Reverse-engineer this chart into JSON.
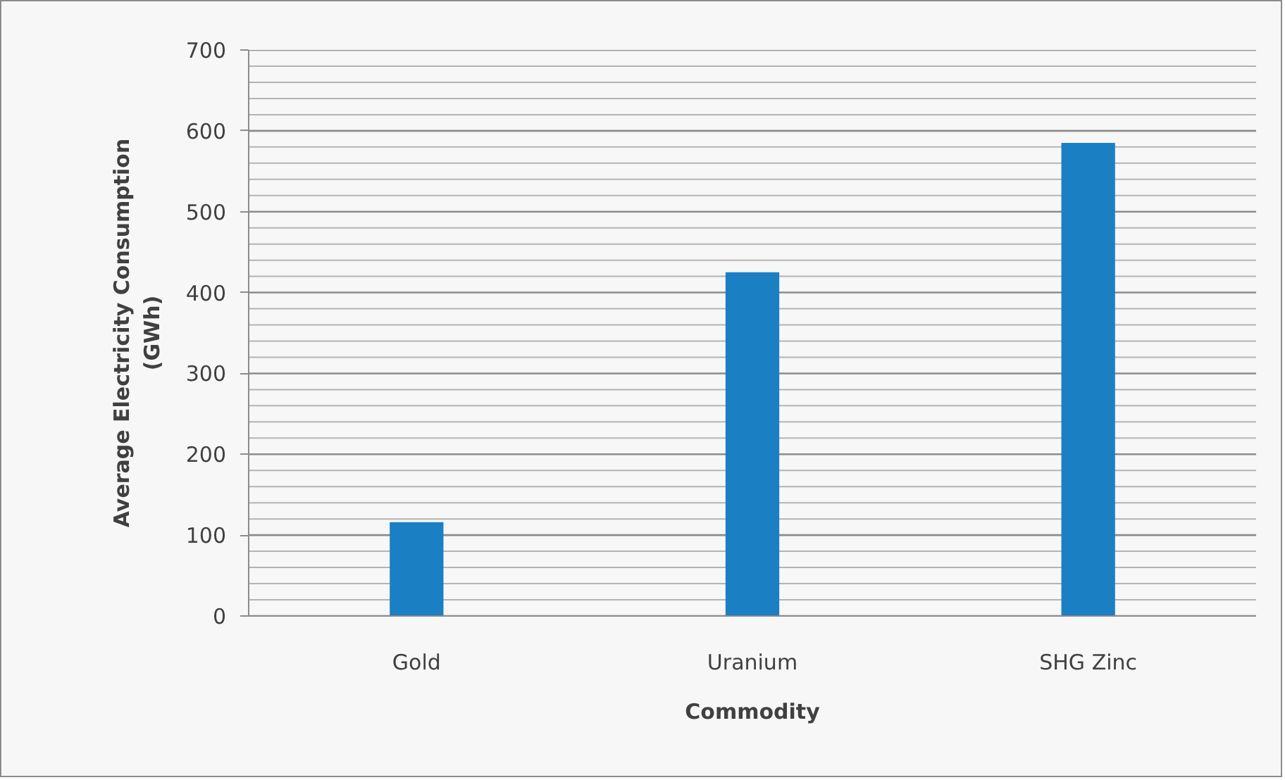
{
  "chart_data": {
    "type": "bar",
    "xlabel": "Commodity",
    "ylabel": "Average Electricity Consumption (GWh)",
    "categories": [
      "Gold",
      "Uranium",
      "SHG Zinc"
    ],
    "values": [
      116,
      425,
      585
    ],
    "color": "#1b7fc4",
    "ylim": [
      0,
      700
    ],
    "yticks": [
      0,
      {
        "value": 20,
        "label": null
      },
      {
        "value": 40,
        "label": null
      },
      {
        "value": 60,
        "label": null
      },
      {
        "value": 80,
        "label": null
      },
      100,
      {
        "value": 120,
        "label": null
      },
      {
        "value": 140,
        "label": null
      },
      {
        "value": 160,
        "label": null
      },
      {
        "value": 180,
        "label": null
      },
      200,
      {
        "value": 220,
        "label": null
      },
      {
        "value": 240,
        "label": null
      },
      {
        "value": 260,
        "label": null
      },
      {
        "value": 280,
        "label": null
      },
      300,
      {
        "value": 320,
        "label": null
      },
      {
        "value": 340,
        "label": null
      },
      {
        "value": 360,
        "label": null
      },
      {
        "value": 380,
        "label": null
      },
      400,
      {
        "value": 420,
        "label": null
      },
      {
        "value": 440,
        "label": null
      },
      {
        "value": 460,
        "label": null
      },
      {
        "value": 480,
        "label": null
      },
      500,
      {
        "value": 520,
        "label": null
      },
      {
        "value": 540,
        "label": null
      },
      {
        "value": 560,
        "label": null
      },
      {
        "value": 580,
        "label": null
      },
      600,
      {
        "value": 620,
        "label": null
      },
      {
        "value": 640,
        "label": null
      },
      {
        "value": 660,
        "label": null
      },
      {
        "value": 680,
        "label": null
      },
      700
    ],
    "grid": "y"
  }
}
